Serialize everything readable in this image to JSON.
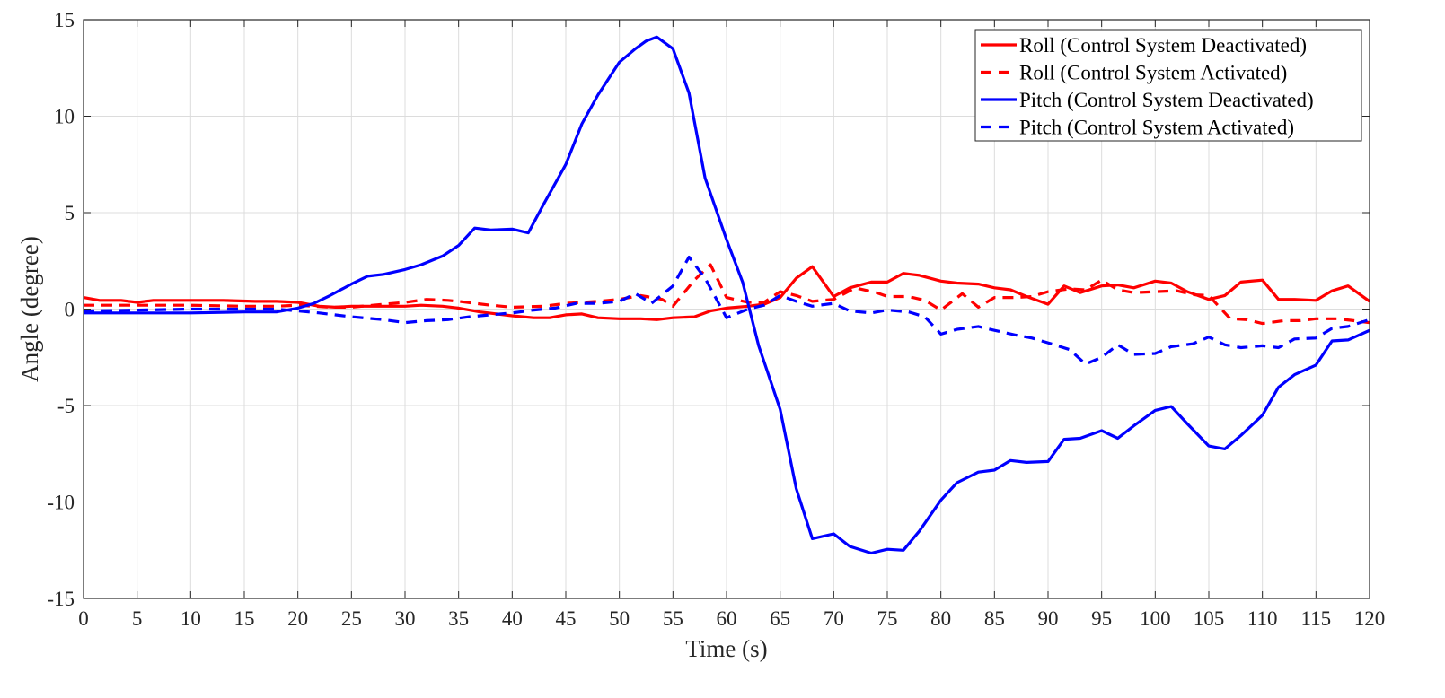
{
  "chart_data": {
    "type": "line",
    "xlabel": "Time (s)",
    "ylabel": "Angle (degree)",
    "xlim": [
      0,
      120
    ],
    "ylim": [
      -15,
      15
    ],
    "xticks": [
      0,
      5,
      10,
      15,
      20,
      25,
      30,
      35,
      40,
      45,
      50,
      55,
      60,
      65,
      70,
      75,
      80,
      85,
      90,
      95,
      100,
      105,
      110,
      115,
      120
    ],
    "yticks": [
      -15,
      -10,
      -5,
      0,
      5,
      10,
      15
    ],
    "grid": true,
    "legend_position": "top-right",
    "series": [
      {
        "name": "Roll (Control System Deactivated)",
        "color": "#ff0000",
        "style": "solid",
        "x": [
          0,
          1.5,
          3.5,
          5,
          6.5,
          8.5,
          10,
          13,
          16,
          18,
          20,
          22,
          23.5,
          25,
          27,
          30,
          31.5,
          33.5,
          35,
          37,
          40,
          42,
          43.5,
          45,
          46.5,
          48,
          50,
          52,
          53.5,
          55,
          57,
          58.5,
          60,
          62,
          63.5,
          65,
          66.5,
          68,
          70,
          71.5,
          73.5,
          75,
          76.5,
          78,
          80,
          81.5,
          83.5,
          85,
          86.5,
          88,
          90,
          91.5,
          93,
          95,
          96.5,
          98,
          100,
          101.5,
          103,
          105,
          106.5,
          108,
          110,
          111.5,
          113,
          115,
          116.5,
          118,
          120
        ],
        "y": [
          0.6,
          0.45,
          0.45,
          0.35,
          0.45,
          0.45,
          0.45,
          0.45,
          0.4,
          0.4,
          0.35,
          0.15,
          0.1,
          0.15,
          0.15,
          0.15,
          0.2,
          0.15,
          0.05,
          -0.15,
          -0.35,
          -0.45,
          -0.45,
          -0.3,
          -0.25,
          -0.45,
          -0.5,
          -0.5,
          -0.55,
          -0.45,
          -0.4,
          -0.1,
          0.05,
          0.15,
          0.25,
          0.6,
          1.6,
          2.2,
          0.65,
          1.1,
          1.4,
          1.4,
          1.85,
          1.75,
          1.45,
          1.35,
          1.3,
          1.1,
          1.0,
          0.65,
          0.25,
          1.2,
          0.85,
          1.2,
          1.25,
          1.1,
          1.45,
          1.35,
          0.9,
          0.5,
          0.7,
          1.4,
          1.5,
          0.5,
          0.5,
          0.45,
          0.95,
          1.2,
          0.4
        ]
      },
      {
        "name": "Roll (Control System Activated)",
        "color": "#ff0000",
        "style": "dashed",
        "x": [
          0,
          3,
          5,
          10,
          15,
          18,
          20,
          23,
          25,
          27,
          30,
          32,
          34,
          35,
          38,
          40,
          43,
          45,
          48,
          50,
          52,
          54,
          55,
          57,
          58.5,
          60,
          62,
          63.5,
          65,
          66.5,
          68,
          70,
          72,
          74,
          75,
          77,
          78.5,
          80,
          82,
          83.5,
          85,
          87,
          88.5,
          90,
          92,
          93.5,
          95,
          96.5,
          98,
          100,
          102,
          103.5,
          105,
          107,
          108.5,
          110,
          112,
          113.5,
          115,
          117,
          118.5,
          120
        ],
        "y": [
          0.2,
          0.2,
          0.2,
          0.2,
          0.15,
          0.15,
          0.2,
          0.1,
          0.1,
          0.2,
          0.35,
          0.5,
          0.45,
          0.4,
          0.2,
          0.1,
          0.15,
          0.3,
          0.4,
          0.5,
          0.7,
          0.5,
          0.15,
          1.5,
          2.3,
          0.6,
          0.35,
          0.35,
          0.9,
          0.7,
          0.4,
          0.5,
          1.1,
          0.85,
          0.65,
          0.65,
          0.45,
          -0.05,
          0.8,
          0.1,
          0.6,
          0.6,
          0.65,
          0.9,
          1.05,
          1.0,
          1.5,
          1.0,
          0.85,
          0.9,
          0.95,
          0.75,
          0.7,
          -0.5,
          -0.55,
          -0.75,
          -0.6,
          -0.6,
          -0.5,
          -0.5,
          -0.6,
          -0.7
        ]
      },
      {
        "name": "Pitch (Control System Deactivated)",
        "color": "#0000ff",
        "style": "solid",
        "x": [
          0,
          5,
          10,
          15,
          18,
          20,
          21.5,
          23,
          25,
          26.5,
          28,
          30,
          31.5,
          33.5,
          35,
          36.5,
          38,
          40,
          41.5,
          43,
          45,
          46.5,
          48,
          50,
          51.5,
          52.5,
          53.5,
          55,
          56.5,
          58,
          60,
          61.5,
          63,
          65,
          66.5,
          68,
          70,
          71.5,
          73.5,
          75,
          76.5,
          78,
          80,
          81.5,
          83.5,
          85,
          86.5,
          88,
          90,
          91.5,
          93,
          95,
          96.5,
          98,
          100,
          101.5,
          103,
          105,
          106.5,
          108,
          110,
          111.5,
          113,
          115,
          116.5,
          118,
          120
        ],
        "y": [
          -0.2,
          -0.2,
          -0.2,
          -0.15,
          -0.15,
          0.05,
          0.3,
          0.7,
          1.3,
          1.7,
          1.8,
          2.05,
          2.3,
          2.75,
          3.3,
          4.2,
          4.1,
          4.15,
          3.95,
          5.5,
          7.5,
          9.6,
          11.1,
          12.8,
          13.5,
          13.9,
          14.1,
          13.5,
          11.2,
          6.8,
          3.6,
          1.4,
          -1.9,
          -5.2,
          -9.3,
          -11.9,
          -11.65,
          -12.3,
          -12.65,
          -12.45,
          -12.5,
          -11.5,
          -9.9,
          -9.0,
          -8.45,
          -8.35,
          -7.85,
          -7.95,
          -7.9,
          -6.75,
          -6.7,
          -6.3,
          -6.7,
          -6.05,
          -5.25,
          -5.05,
          -5.95,
          -7.1,
          -7.25,
          -6.55,
          -5.5,
          -4.05,
          -3.4,
          -2.9,
          -1.65,
          -1.6,
          -1.1
        ]
      },
      {
        "name": "Pitch (Control System Activated)",
        "color": "#0000ff",
        "style": "dashed",
        "x": [
          0,
          5,
          10,
          15,
          18,
          20,
          22,
          25,
          28,
          30,
          32,
          34,
          36,
          38,
          40,
          42,
          44,
          46,
          48,
          50,
          51.5,
          53,
          55,
          56.5,
          58,
          60,
          62,
          63.5,
          65,
          66.5,
          68,
          70,
          71.5,
          73.5,
          75,
          77,
          78.5,
          80,
          81.5,
          83.5,
          85,
          87,
          88.5,
          90,
          92,
          93.5,
          95,
          96.5,
          98,
          100,
          101.5,
          103.5,
          105,
          106.5,
          108,
          110,
          111.5,
          113,
          115,
          116.5,
          118,
          120
        ],
        "y": [
          -0.1,
          -0.05,
          0.0,
          0.0,
          0.0,
          -0.1,
          -0.2,
          -0.4,
          -0.55,
          -0.7,
          -0.6,
          -0.55,
          -0.4,
          -0.3,
          -0.2,
          -0.05,
          0.05,
          0.3,
          0.3,
          0.4,
          0.8,
          0.3,
          1.2,
          2.7,
          1.6,
          -0.45,
          0.0,
          0.2,
          0.7,
          0.4,
          0.15,
          0.3,
          -0.1,
          -0.2,
          -0.05,
          -0.15,
          -0.4,
          -1.3,
          -1.05,
          -0.9,
          -1.1,
          -1.35,
          -1.5,
          -1.75,
          -2.1,
          -2.85,
          -2.5,
          -1.85,
          -2.35,
          -2.3,
          -1.95,
          -1.8,
          -1.45,
          -1.85,
          -2.0,
          -1.9,
          -2.0,
          -1.55,
          -1.5,
          -1.0,
          -0.9,
          -0.55
        ]
      }
    ]
  }
}
